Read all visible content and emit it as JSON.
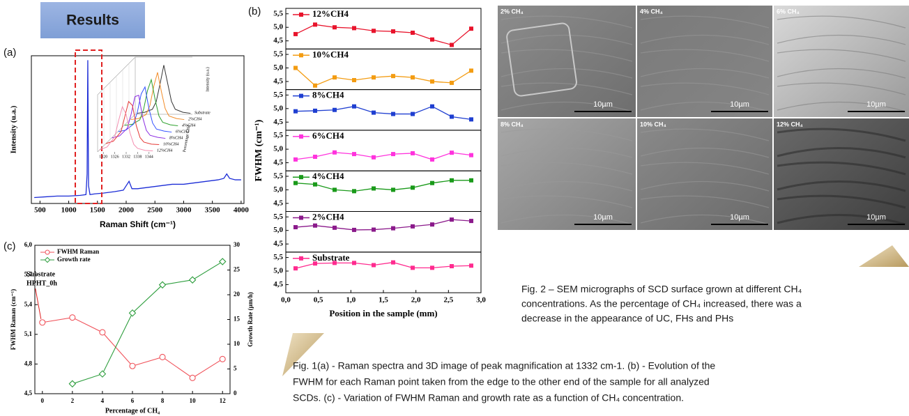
{
  "header": {
    "title": "Results"
  },
  "panel_labels": [
    "(a)",
    "(b)",
    "(c)"
  ],
  "chart_data": [
    {
      "type": "line",
      "x_label": "Raman Shift (cm⁻¹)",
      "y_label": "Intensity (u.a.)",
      "x": [
        400,
        600,
        800,
        1000,
        1200,
        1300,
        1320,
        1332,
        1345,
        1370,
        1450,
        1600,
        1800,
        1950,
        2000,
        2050,
        2100,
        2200,
        2400,
        2600,
        2800,
        3000,
        3200,
        3400,
        3600,
        3700,
        3750,
        3800,
        3900,
        4000
      ],
      "series": [
        {
          "color": "#1a2bd6",
          "values": [
            4,
            4.5,
            5,
            5,
            5.5,
            6,
            20,
            97,
            12,
            6,
            6.5,
            7,
            8,
            9,
            12,
            15,
            10,
            10,
            11,
            12,
            13,
            13,
            14,
            15,
            16,
            17,
            20,
            17,
            16,
            16
          ]
        }
      ],
      "xlim": [
        350,
        4050
      ],
      "xticks": [
        500,
        1000,
        1500,
        2000,
        2500,
        3000,
        3500,
        4000
      ],
      "ylim": [
        0,
        100
      ]
    },
    {
      "type": "waterfall",
      "y_label": "Intensity (u.a.)",
      "depth_label": "Percentage CH4",
      "x": [
        1318,
        1322,
        1326,
        1328,
        1330,
        1332,
        1334,
        1336,
        1338,
        1342,
        1346
      ],
      "xlim": [
        1317,
        1347
      ],
      "xticks": [
        1320,
        1326,
        1332,
        1338,
        1344
      ],
      "ylim": [
        0,
        100
      ],
      "series": [
        {
          "name": "Substrate",
          "color": "#333333",
          "values": [
            2,
            4,
            10,
            25,
            60,
            98,
            62,
            26,
            10,
            4,
            2
          ]
        },
        {
          "name": "2%CH4",
          "color": "#f28c28",
          "values": [
            2,
            4,
            12,
            30,
            68,
            96,
            58,
            24,
            9,
            4,
            2
          ]
        },
        {
          "name": "4%CH4",
          "color": "#2ca02c",
          "values": [
            3,
            5,
            14,
            35,
            72,
            94,
            55,
            22,
            9,
            4,
            2
          ]
        },
        {
          "name": "6%CH4",
          "color": "#3050ff",
          "values": [
            3,
            6,
            18,
            42,
            78,
            92,
            50,
            20,
            8,
            4,
            2
          ]
        },
        {
          "name": "8%CH4",
          "color": "#8a2be2",
          "values": [
            3,
            7,
            22,
            50,
            85,
            88,
            45,
            18,
            8,
            4,
            2
          ]
        },
        {
          "name": "10%CH4",
          "color": "#e53935",
          "values": [
            4,
            9,
            28,
            58,
            88,
            80,
            40,
            16,
            7,
            3,
            2
          ]
        },
        {
          "name": "12%CH4",
          "color": "#f48fb1",
          "values": [
            4,
            10,
            30,
            62,
            90,
            75,
            38,
            15,
            7,
            3,
            2
          ]
        }
      ]
    },
    {
      "type": "panels",
      "x_label": "Position in the sample (mm)",
      "y_label": "FWHM (cm⁻¹)",
      "x": [
        0.15,
        0.45,
        0.75,
        1.05,
        1.35,
        1.65,
        1.95,
        2.25,
        2.55,
        2.85
      ],
      "xlim": [
        0,
        3
      ],
      "xticks": [
        {
          "value": 0,
          "label": "0,0"
        },
        {
          "value": 0.5,
          "label": "0,5"
        },
        {
          "value": 1,
          "label": "1,0"
        },
        {
          "value": 1.5,
          "label": "1,5"
        },
        {
          "value": 2,
          "label": "2,0"
        },
        {
          "value": 2.5,
          "label": "2,5"
        },
        {
          "value": 3,
          "label": "3,0"
        }
      ],
      "ylim": [
        4.2,
        5.7
      ],
      "yticks": [
        {
          "value": 4.5,
          "label": "4,5"
        },
        {
          "value": 5,
          "label": "5,0"
        },
        {
          "value": 5.5,
          "label": "5,5"
        }
      ],
      "series": [
        {
          "name": "12%CH4",
          "color": "#e8142c",
          "values": [
            4.75,
            5.1,
            5.0,
            4.97,
            4.87,
            4.85,
            4.8,
            4.55,
            4.35,
            4.95
          ]
        },
        {
          "name": "10%CH4",
          "color": "#f39c12",
          "values": [
            5.0,
            4.35,
            4.65,
            4.55,
            4.65,
            4.7,
            4.65,
            4.5,
            4.45,
            4.9
          ]
        },
        {
          "name": "8%CH4",
          "color": "#1f3fd1",
          "values": [
            4.9,
            4.92,
            4.95,
            5.08,
            4.85,
            4.8,
            4.8,
            5.08,
            4.7,
            4.6
          ]
        },
        {
          "name": "6%CH4",
          "color": "#ff33dd",
          "values": [
            4.62,
            4.72,
            4.88,
            4.82,
            4.7,
            4.82,
            4.85,
            4.62,
            4.87,
            4.78
          ]
        },
        {
          "name": "4%CH4",
          "color": "#1a9a1a",
          "values": [
            5.25,
            5.2,
            5.0,
            4.95,
            5.05,
            5.0,
            5.08,
            5.25,
            5.35,
            5.35
          ]
        },
        {
          "name": "2%CH4",
          "color": "#8b1a8b",
          "values": [
            5.12,
            5.18,
            5.1,
            5.02,
            5.03,
            5.08,
            5.15,
            5.22,
            5.4,
            5.35
          ]
        },
        {
          "name": "Substrate",
          "color": "#ff2b8f",
          "values": [
            5.1,
            5.28,
            5.3,
            5.3,
            5.22,
            5.32,
            5.12,
            5.12,
            5.18,
            5.2
          ]
        }
      ]
    },
    {
      "type": "dual-line",
      "x_label": "Percentage of CH₄",
      "y_label": "FWHM Raman (cm⁻¹)",
      "y2_label": "Growth Rate (µm/h)",
      "annotations": [
        "Substrate",
        "HPHT_0h"
      ],
      "x": [
        0,
        2,
        4,
        6,
        8,
        10,
        12
      ],
      "xlim": [
        -0.5,
        12.5
      ],
      "xticks": [
        0,
        2,
        4,
        6,
        8,
        10,
        12
      ],
      "ylim": [
        4.5,
        6.0
      ],
      "yticks": [
        {
          "value": 4.5,
          "label": "4,5"
        },
        {
          "value": 4.8,
          "label": "4,8"
        },
        {
          "value": 5.1,
          "label": "5,1"
        },
        {
          "value": 5.4,
          "label": "5,4"
        },
        {
          "value": 5.7,
          "label": "5,7"
        },
        {
          "value": 6.0,
          "label": "6,0"
        }
      ],
      "y2lim": [
        0,
        30
      ],
      "y2ticks": [
        0,
        5,
        10,
        15,
        20,
        25,
        30
      ],
      "legend": "upper left",
      "series": [
        {
          "name": "FWHM Raman",
          "color": "#f0525a",
          "marker": "circle",
          "values": [
            5.22,
            5.27,
            5.12,
            4.78,
            4.87,
            4.66,
            4.85
          ]
        },
        {
          "name": "Growth rate",
          "color": "#2e9e3e",
          "marker": "diamond",
          "axis": "y2",
          "values": [
            null,
            2,
            4,
            16.3,
            22,
            23,
            26.7
          ]
        }
      ]
    }
  ],
  "sem": {
    "panels": [
      {
        "label": "2% CH₄",
        "scale": "10µm"
      },
      {
        "label": "4% CH₄",
        "scale": "10µm"
      },
      {
        "label": "6% CH₄",
        "scale": "10µm"
      },
      {
        "label": "8% CH₄",
        "scale": "10µm"
      },
      {
        "label": "10% CH₄",
        "scale": "10µm"
      },
      {
        "label": "12% CH₄",
        "scale": "10µm"
      }
    ]
  },
  "captions": {
    "fig2": [
      "Fig. 2 –  SEM micrographs of SCD surface grown at different CH₄",
      "concentrations. As the percentage of CH₄ increased, there was a",
      "decrease in the appearance of UC, FHs and PHs"
    ],
    "fig1": [
      "Fig. 1(a) - Raman spectra and 3D image of peak magnification at 1332 cm-1. (b) - Evolution of the",
      "FWHM for each Raman point taken from the edge to the other end of the sample for all analyzed",
      "SCDs. (c) -  Variation of FWHM Raman and growth rate as a function of CH₄ concentration."
    ]
  }
}
